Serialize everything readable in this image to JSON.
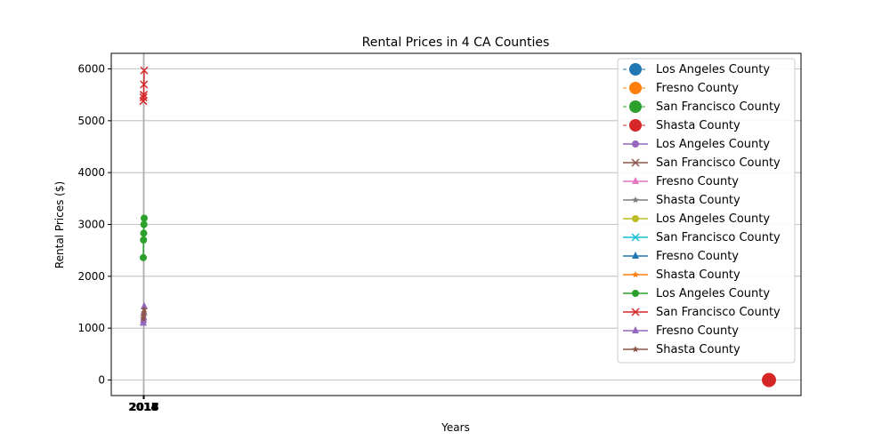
{
  "chart_data": {
    "type": "line",
    "title": "Rental Prices in 4 CA Counties",
    "xlabel": "Years",
    "ylabel": "Rental Prices ($)",
    "grid": true,
    "legend_position": "top-right",
    "x_tick_labels": [
      "2014",
      "2015",
      "2016",
      "2017",
      "2018"
    ],
    "y_ticks": [
      0,
      1000,
      2000,
      3000,
      4000,
      5000,
      6000
    ],
    "ylim": [
      -300,
      6300
    ],
    "series": [
      {
        "name": "Los Angeles County",
        "color": "#2ca02c",
        "marker": "circle",
        "values": [
          2360,
          2700,
          2830,
          3000,
          3120
        ]
      },
      {
        "name": "San Francisco County",
        "color": "#d62728",
        "marker": "x",
        "values": [
          5380,
          5450,
          5500,
          5700,
          5970
        ]
      },
      {
        "name": "Fresno County",
        "color": "#9467bd",
        "marker": "triangle",
        "values": [
          1100,
          1150,
          1200,
          1300,
          1420
        ]
      },
      {
        "name": "Shasta County",
        "color": "#8c564b",
        "marker": "star",
        "values": [
          1180,
          1220,
          1260,
          1300,
          1360
        ]
      }
    ],
    "stray_points": [
      {
        "name": "Shasta County",
        "color": "#d62728",
        "value": 0
      }
    ],
    "legend": [
      {
        "label": "Los Angeles County",
        "color": "#1f77b4",
        "marker": "big-circle",
        "dashed": true
      },
      {
        "label": "Fresno County",
        "color": "#ff7f0e",
        "marker": "big-circle",
        "dashed": true
      },
      {
        "label": "San Francisco County",
        "color": "#2ca02c",
        "marker": "big-circle",
        "dashed": true
      },
      {
        "label": "Shasta County",
        "color": "#d62728",
        "marker": "big-circle",
        "dashed": true
      },
      {
        "label": "Los Angeles County",
        "color": "#9467bd",
        "marker": "circle",
        "dashed": false
      },
      {
        "label": "San Francisco County",
        "color": "#8c564b",
        "marker": "x",
        "dashed": false
      },
      {
        "label": "Fresno County",
        "color": "#e377c2",
        "marker": "triangle",
        "dashed": false
      },
      {
        "label": "Shasta County",
        "color": "#7f7f7f",
        "marker": "star",
        "dashed": false
      },
      {
        "label": "Los Angeles County",
        "color": "#bcbd22",
        "marker": "circle",
        "dashed": false
      },
      {
        "label": "San Francisco County",
        "color": "#17becf",
        "marker": "x",
        "dashed": false
      },
      {
        "label": "Fresno County",
        "color": "#1f77b4",
        "marker": "triangle",
        "dashed": false
      },
      {
        "label": "Shasta County",
        "color": "#ff7f0e",
        "marker": "star",
        "dashed": false
      },
      {
        "label": "Los Angeles County",
        "color": "#2ca02c",
        "marker": "circle",
        "dashed": false
      },
      {
        "label": "San Francisco County",
        "color": "#d62728",
        "marker": "x",
        "dashed": false
      },
      {
        "label": "Fresno County",
        "color": "#9467bd",
        "marker": "triangle",
        "dashed": false
      },
      {
        "label": "Shasta County",
        "color": "#8c564b",
        "marker": "star",
        "dashed": false
      }
    ]
  }
}
